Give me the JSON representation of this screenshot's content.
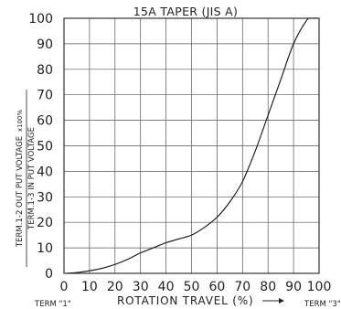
{
  "chart_data": {
    "type": "line",
    "title": "15A TAPER (JIS A)",
    "xlabel": "ROTATION TRAVEL (%)",
    "ylabel_line1": "TERM.1-2 OUT PUT VOLTAGE",
    "ylabel_unit": "x100%",
    "ylabel_line2": "TERM.1-3 IN PUT VOLTAGE",
    "term_left": "TERM \"1\"",
    "term_right": "TERM \"3\"",
    "xlim": [
      0,
      100
    ],
    "ylim": [
      0,
      100
    ],
    "grid": true,
    "x_ticks": [
      "0",
      "10",
      "20",
      "30",
      "40",
      "50",
      "60",
      "70",
      "80",
      "90",
      "100"
    ],
    "y_ticks": [
      "0",
      "10",
      "20",
      "30",
      "40",
      "50",
      "60",
      "70",
      "80",
      "90",
      "100"
    ],
    "series": [
      {
        "x": [
          0,
          5,
          10,
          15,
          20,
          25,
          30,
          35,
          40,
          45,
          50,
          55,
          60,
          65,
          70,
          75,
          80,
          85,
          90,
          95,
          97,
          100
        ],
        "y": [
          0,
          0.3,
          1,
          2,
          3.5,
          5.5,
          8,
          10,
          12,
          13.5,
          15,
          18,
          22,
          28,
          36,
          48,
          62,
          76,
          90,
          99,
          100,
          100
        ]
      }
    ]
  }
}
